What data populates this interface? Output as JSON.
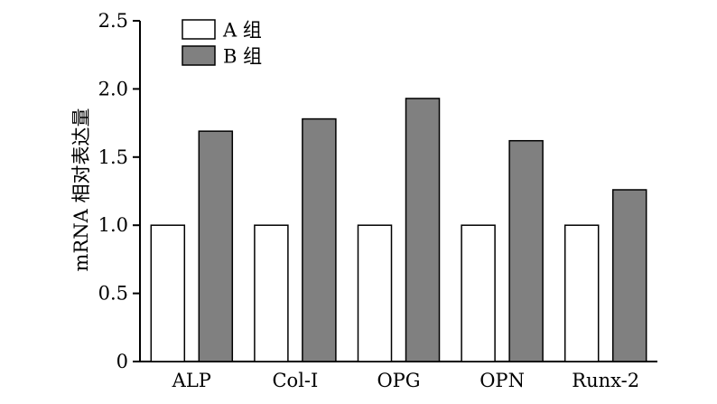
{
  "chart_data": {
    "type": "bar",
    "categories": [
      "ALP",
      "Col-Ⅰ",
      "OPG",
      "OPN",
      "Runx-2"
    ],
    "series": [
      {
        "name": "A 组",
        "values": [
          1.0,
          1.0,
          1.0,
          1.0,
          1.0
        ],
        "color": "#ffffff"
      },
      {
        "name": "B 组",
        "values": [
          1.69,
          1.78,
          1.93,
          1.62,
          1.26
        ],
        "color": "#808080"
      }
    ],
    "xlabel": "",
    "ylabel": "mRNA 相对表达量",
    "ylim": [
      0,
      2.5
    ],
    "yticks": [
      0,
      0.5,
      1.0,
      1.5,
      2.0,
      2.5
    ],
    "ytick_labels": [
      "0",
      "0.5",
      "1.0",
      "1.5",
      "2.0",
      "2.5"
    ],
    "grid": false,
    "legend_position": "top-left"
  }
}
